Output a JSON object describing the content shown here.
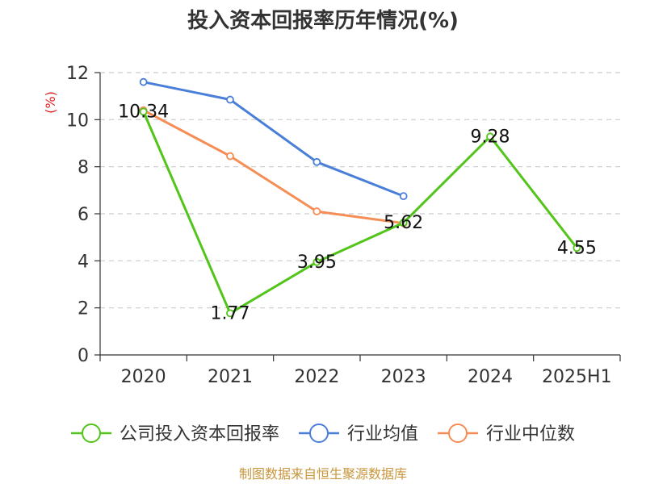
{
  "title": "投入资本回报率历年情况(%)",
  "source": "制图数据来自恒生聚源数据库",
  "chart_data": {
    "type": "line",
    "title": "投入资本回报率历年情况(%)",
    "ylabel": "(%)",
    "xlabel": "",
    "categories": [
      "2020",
      "2021",
      "2022",
      "2023",
      "2024",
      "2025H1"
    ],
    "ylim": [
      0,
      12
    ],
    "yticks": [
      0,
      2,
      4,
      6,
      8,
      10,
      12
    ],
    "grid": true,
    "legend_position": "bottom",
    "series": [
      {
        "name": "公司投入资本回报率",
        "color": "#52c41a",
        "values": [
          10.34,
          1.77,
          3.95,
          5.62,
          9.28,
          4.55
        ],
        "labels": [
          "10.34",
          "1.77",
          "3.95",
          "5.62",
          "9.28",
          "4.55"
        ]
      },
      {
        "name": "行业均值",
        "color": "#4a7fd9",
        "values": [
          11.6,
          10.85,
          8.2,
          6.75,
          null,
          null
        ]
      },
      {
        "name": "行业中位数",
        "color": "#f58d55",
        "values": [
          10.4,
          8.45,
          6.1,
          5.6,
          null,
          null
        ]
      }
    ]
  }
}
